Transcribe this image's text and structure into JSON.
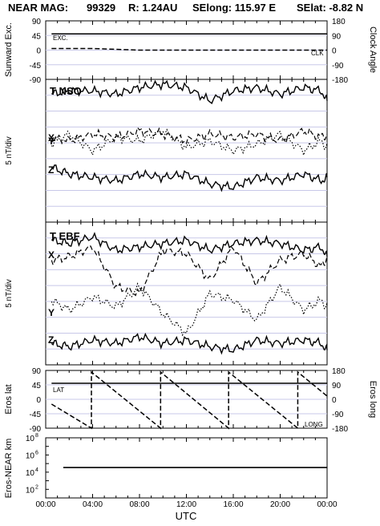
{
  "header": {
    "mission": "NEAR MAG:",
    "date": "99329",
    "range": "R: 1.24AU",
    "selong": "SElong: 115.97 E",
    "selat": "SElat:  -8.82 N"
  },
  "x_axis": {
    "label": "UTC",
    "ticks": [
      "00:00",
      "04:00",
      "08:00",
      "12:00",
      "16:00",
      "20:00",
      "00:00"
    ],
    "range_hours": [
      0,
      24
    ]
  },
  "chart_data": [
    {
      "id": "sunward",
      "type": "line",
      "ylabel": "Sunward Exc.",
      "ylabel_right": "Clock Angle",
      "yticks_left": [
        "90",
        "45",
        "0",
        "-45",
        "-90"
      ],
      "yticks_right": [
        "180",
        "90",
        "0",
        "-90",
        "-180"
      ],
      "ylim": [
        -90,
        90
      ],
      "grid": true,
      "series": [
        {
          "name": "EXC.",
          "style": "solid",
          "x": [
            0.5,
            24
          ],
          "values": [
            50,
            50
          ]
        },
        {
          "name": "CLK",
          "style": "dashed",
          "x": [
            0.5,
            4,
            8,
            24
          ],
          "values": [
            5,
            5,
            0,
            0
          ]
        }
      ]
    },
    {
      "id": "nso",
      "type": "line",
      "title": "T NSO",
      "ylabel": "5 nT/div",
      "series_labels": [
        "T",
        "Y",
        "X",
        "Z"
      ],
      "grid": true,
      "note": "traces T, X, Y, Z stacked with arbitrary offsets; values in nT relative to panel",
      "series": [
        {
          "name": "T",
          "style": "solid",
          "x": [
            0.5,
            2,
            4,
            6,
            8,
            10,
            12,
            14,
            16,
            18,
            20,
            22,
            23.5,
            24
          ],
          "values": [
            -3,
            -2,
            -2,
            -3,
            -1,
            0,
            -1,
            -5,
            -2,
            -1,
            -3,
            -1,
            -2,
            -5
          ]
        },
        {
          "name": "X",
          "style": "dashed",
          "x": [
            0.5,
            2,
            4,
            6,
            8,
            10,
            12,
            14,
            16,
            18,
            20,
            22,
            23.5,
            24
          ],
          "values": [
            -16,
            -17,
            -15,
            -16,
            -14,
            -15,
            -17,
            -15,
            -16,
            -15,
            -17,
            -14,
            -16,
            -15
          ]
        },
        {
          "name": "Y",
          "style": "dotted",
          "x": [
            0.5,
            2,
            4,
            6,
            8,
            10,
            12,
            14,
            16,
            18,
            20,
            22,
            23.5,
            24
          ],
          "values": [
            -18,
            -15,
            -20,
            -16,
            -17,
            -14,
            -19,
            -17,
            -20,
            -18,
            -15,
            -20,
            -17,
            -19
          ]
        },
        {
          "name": "Z",
          "style": "solid",
          "x": [
            0.5,
            2,
            4,
            6,
            8,
            10,
            12,
            14,
            16,
            18,
            20,
            22,
            23.5,
            24
          ],
          "values": [
            -25,
            -27,
            -28,
            -29,
            -27,
            -28,
            -27,
            -30,
            -31,
            -28,
            -29,
            -27,
            -29,
            -28
          ]
        }
      ]
    },
    {
      "id": "ebf",
      "type": "line",
      "title": "T EBF",
      "ylabel": "5 nT/div",
      "series_labels": [
        "T",
        "X",
        "Y",
        "Z"
      ],
      "grid": true,
      "series": [
        {
          "name": "T",
          "style": "solid",
          "x": [
            0.5,
            2,
            4,
            6,
            8,
            10,
            12,
            14,
            16,
            18,
            20,
            22,
            23.5,
            24
          ],
          "values": [
            -4,
            -5,
            -3,
            -7,
            -6,
            -5,
            -4,
            -7,
            -5,
            -4,
            -5,
            -7,
            -6,
            -9
          ]
        },
        {
          "name": "X",
          "style": "dashed",
          "x": [
            0.5,
            2,
            4,
            6,
            8,
            10,
            12,
            14,
            16,
            18,
            20,
            22,
            23.5,
            24
          ],
          "values": [
            -10,
            -9,
            -6,
            -18,
            -20,
            -7,
            -8,
            -16,
            -6,
            -17,
            -10,
            -8,
            -12,
            -9
          ]
        },
        {
          "name": "Y",
          "style": "dotted",
          "x": [
            0.5,
            2,
            4,
            6,
            8,
            10,
            12,
            14,
            16,
            18,
            20,
            22,
            23.5,
            24
          ],
          "values": [
            -22,
            -25,
            -21,
            -24,
            -18,
            -26,
            -32,
            -20,
            -22,
            -28,
            -18,
            -25,
            -22,
            -24
          ]
        },
        {
          "name": "Z",
          "style": "solid",
          "x": [
            0.5,
            2,
            4,
            6,
            8,
            10,
            12,
            14,
            16,
            18,
            20,
            22,
            23.5,
            24
          ],
          "values": [
            -35,
            -36,
            -34,
            -35,
            -33,
            -35,
            -34,
            -36,
            -37,
            -34,
            -35,
            -34,
            -35,
            -37
          ]
        }
      ]
    },
    {
      "id": "eros",
      "type": "line",
      "ylabel": "Eros lat",
      "ylabel_right": "Eros long",
      "yticks_left": [
        "90",
        "45",
        "0",
        "-45",
        "-90"
      ],
      "yticks_right": [
        "180",
        "90",
        "0",
        "-90",
        "-180"
      ],
      "ylim": [
        -90,
        90
      ],
      "grid": true,
      "series": [
        {
          "name": "LAT",
          "style": "solid",
          "x": [
            0.5,
            24
          ],
          "values": [
            50,
            50
          ]
        },
        {
          "name": "LONG",
          "style": "dashed",
          "x": [
            0.5,
            3.9,
            3.9,
            9.8,
            9.8,
            15.6,
            15.6,
            21.5,
            21.5,
            24
          ],
          "values": [
            -15,
            -90,
            85,
            -90,
            85,
            -90,
            85,
            -90,
            85,
            10
          ]
        }
      ]
    },
    {
      "id": "range",
      "type": "line",
      "ylabel": "Eros-NEAR km",
      "yscale": "log",
      "yticks_left": [
        "10^8",
        "10^6",
        "10^4",
        "10^2"
      ],
      "ylim": [
        10,
        100000000
      ],
      "grid": false,
      "series": [
        {
          "name": "distance",
          "style": "solid",
          "x": [
            1.5,
            24
          ],
          "values": [
            35000,
            35000
          ]
        }
      ]
    }
  ]
}
